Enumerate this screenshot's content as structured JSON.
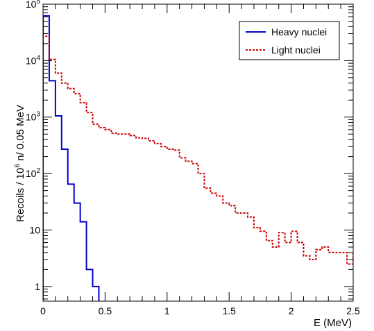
{
  "chart_data": {
    "type": "step",
    "xlabel": "E (MeV)",
    "ylabel_main": "Recoils / 10",
    "ylabel_sup": "6",
    "ylabel_rest": " n/ 0.05 MeV",
    "xlim": [
      0,
      2.5
    ],
    "ylim": [
      0.55,
      100000
    ],
    "yscale": "log",
    "legend_position": "top-right",
    "x_ticks": [
      {
        "value": 0,
        "label": "0"
      },
      {
        "value": 0.5,
        "label": "0.5"
      },
      {
        "value": 1,
        "label": "1"
      },
      {
        "value": 1.5,
        "label": "1.5"
      },
      {
        "value": 2,
        "label": "2"
      },
      {
        "value": 2.5,
        "label": "2.5"
      }
    ],
    "y_ticks": [
      {
        "value": 1,
        "label": "1"
      },
      {
        "value": 10,
        "label": "10"
      },
      {
        "value": 100,
        "label": "10",
        "exp": "2"
      },
      {
        "value": 1000,
        "label": "10",
        "exp": "3"
      },
      {
        "value": 10000,
        "label": "10",
        "exp": "4"
      },
      {
        "value": 100000,
        "label": "10",
        "exp": "5"
      }
    ],
    "bin_width": 0.05,
    "series": [
      {
        "name": "Heavy nuclei",
        "color": "#0000cc",
        "style": "solid",
        "x_start": 0,
        "values": [
          62000,
          4400,
          1050,
          270,
          65,
          30,
          14,
          2,
          1
        ]
      },
      {
        "name": "Light nuclei",
        "color": "#cc0000",
        "style": "dashed",
        "x_start": 0,
        "values": [
          27000,
          10500,
          6000,
          4000,
          3200,
          2600,
          1800,
          1200,
          750,
          650,
          600,
          520,
          500,
          500,
          470,
          430,
          420,
          380,
          340,
          300,
          270,
          260,
          190,
          165,
          150,
          100,
          55,
          45,
          40,
          30,
          27,
          20,
          20,
          17,
          11,
          9.5,
          6.5,
          5,
          9,
          6,
          9.5,
          6,
          3.5,
          3,
          4.5,
          5,
          4,
          4,
          4,
          2.5,
          4,
          4,
          2.2,
          1.3,
          1.0,
          0.5
        ]
      }
    ]
  }
}
